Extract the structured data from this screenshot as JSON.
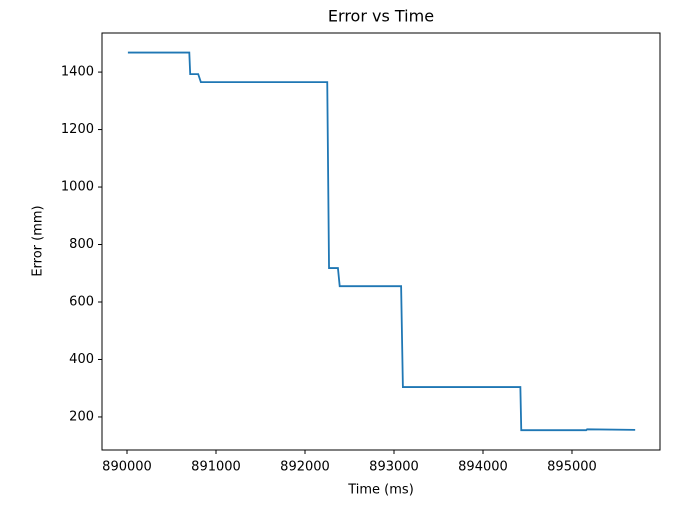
{
  "chart_data": {
    "type": "line",
    "title": "Error vs Time",
    "x_label": "Time (ms)",
    "y_label": "Error (mm)",
    "x": [
      890010,
      890700,
      890710,
      890800,
      890830,
      892250,
      892270,
      892370,
      892390,
      893080,
      893100,
      894420,
      894430,
      895160,
      895170,
      895710
    ],
    "series": [
      {
        "color": "#1f77b4",
        "values": [
          1468,
          1468,
          1393,
          1393,
          1365,
          1365,
          718,
          718,
          655,
          655,
          304,
          304,
          154,
          154,
          157,
          155
        ]
      }
    ],
    "xlim": [
      889719,
      895989
    ],
    "xticks": [
      890000,
      891000,
      892000,
      893000,
      894000,
      895000
    ],
    "ylim": [
      85,
      1536
    ],
    "yticks": [
      200,
      400,
      600,
      800,
      1000,
      1200,
      1400
    ]
  }
}
